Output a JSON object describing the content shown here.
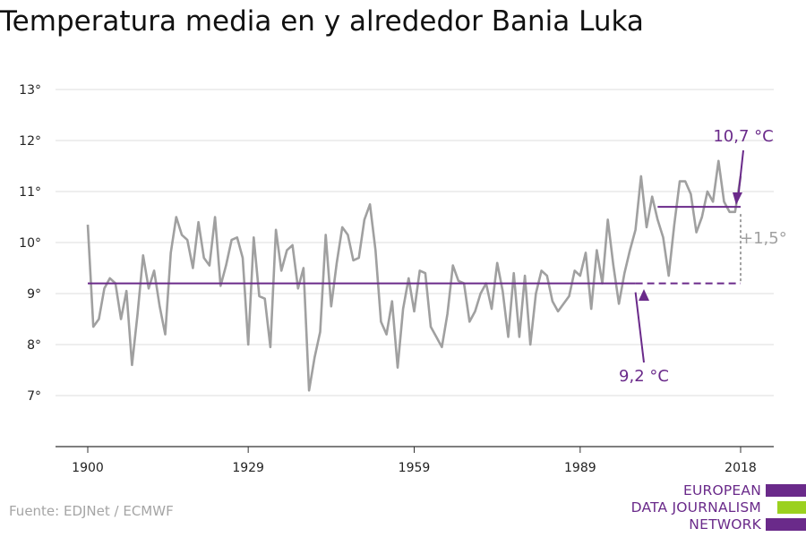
{
  "title": "Temperatura media en y alrededor Bania Luka",
  "source": "Fuente: EDJNet / ECMWF",
  "logo": {
    "lines": [
      "EUROPEAN",
      "DATA JOURNALISM",
      "NETWORK"
    ],
    "colors": [
      "#6a2a8a",
      "#9bd11f",
      "#6a2a8a"
    ]
  },
  "colors": {
    "series": "#a0a0a0",
    "accent": "#6a2a8a",
    "grid": "#dddddd",
    "axis": "#333333"
  },
  "chart_data": {
    "type": "line",
    "title": "Temperatura media en y alrededor Bania Luka",
    "x": [
      1900,
      1901,
      1902,
      1903,
      1904,
      1905,
      1906,
      1907,
      1908,
      1909,
      1910,
      1911,
      1912,
      1913,
      1914,
      1915,
      1916,
      1917,
      1918,
      1919,
      1920,
      1921,
      1922,
      1923,
      1924,
      1925,
      1926,
      1927,
      1928,
      1929,
      1930,
      1931,
      1932,
      1933,
      1934,
      1935,
      1936,
      1937,
      1938,
      1939,
      1940,
      1941,
      1942,
      1943,
      1944,
      1945,
      1946,
      1947,
      1948,
      1949,
      1950,
      1951,
      1952,
      1953,
      1954,
      1955,
      1956,
      1957,
      1958,
      1959,
      1960,
      1961,
      1962,
      1963,
      1964,
      1965,
      1966,
      1967,
      1968,
      1969,
      1970,
      1971,
      1972,
      1973,
      1974,
      1975,
      1976,
      1977,
      1978,
      1979,
      1980,
      1981,
      1982,
      1983,
      1984,
      1985,
      1986,
      1987,
      1988,
      1989,
      1990,
      1991,
      1992,
      1993,
      1994,
      1995,
      1996,
      1997,
      1998,
      1999,
      2000,
      2001,
      2002,
      2003,
      2004,
      2005,
      2006,
      2007,
      2008,
      2009,
      2010,
      2011,
      2012,
      2013,
      2014,
      2015,
      2016,
      2017,
      2018
    ],
    "series": [
      {
        "values": [
          10.35,
          8.35,
          8.5,
          9.1,
          9.3,
          9.2,
          8.5,
          9.05,
          7.6,
          8.6,
          9.75,
          9.1,
          9.45,
          8.75,
          8.2,
          9.8,
          10.5,
          10.15,
          10.05,
          9.5,
          10.4,
          9.7,
          9.55,
          10.5,
          9.15,
          9.55,
          10.05,
          10.1,
          9.7,
          8.0,
          10.1,
          8.95,
          8.9,
          7.95,
          10.25,
          9.45,
          9.85,
          9.95,
          9.1,
          9.5,
          7.1,
          7.75,
          8.25,
          10.15,
          8.75,
          9.6,
          10.3,
          10.15,
          9.65,
          9.7,
          10.45,
          10.75,
          9.85,
          8.45,
          8.2,
          8.85,
          7.55,
          8.7,
          9.3,
          8.65,
          9.45,
          9.4,
          8.35,
          8.15,
          7.95,
          8.6,
          9.55,
          9.25,
          9.2,
          8.45,
          8.65,
          9.0,
          9.2,
          8.7,
          9.6,
          9.05,
          8.15,
          9.4,
          8.15,
          9.35,
          8.0,
          9.0,
          9.45,
          9.35,
          8.85,
          8.65,
          8.8,
          8.95,
          9.45,
          9.35,
          9.8,
          8.7,
          9.85,
          9.2,
          10.45,
          9.55,
          8.8,
          9.4,
          9.85,
          10.25,
          11.3,
          10.3,
          10.9,
          10.45,
          10.1,
          9.35,
          10.35,
          11.2,
          11.2,
          10.95,
          10.2,
          10.5,
          11.0,
          10.8,
          11.6,
          10.8,
          10.6,
          10.6,
          11.3
        ]
      }
    ],
    "xticks": [
      1900,
      1929,
      1959,
      1989,
      2018
    ],
    "xtick_labels": [
      "1900",
      "1929",
      "1959",
      "1989",
      "2018"
    ],
    "yticks": [
      7,
      8,
      9,
      10,
      11,
      12,
      13
    ],
    "ytick_labels": [
      "7°",
      "8°",
      "9°",
      "10°",
      "11°",
      "12°",
      "13°"
    ],
    "xlim": [
      1900,
      2018
    ],
    "ylim": [
      6,
      13
    ],
    "grid": true,
    "reference_lines": [
      {
        "value": 9.2,
        "from": 1900,
        "to": 2018,
        "solid_until": 1999
      },
      {
        "value": 10.7,
        "from": 2003,
        "to": 2018
      }
    ],
    "annotations": [
      {
        "text": "10,7 °C",
        "x": 2018,
        "y": 10.7
      },
      {
        "text": "9,2 °C",
        "x": 1999,
        "y": 9.2
      },
      {
        "text": "+1,5°",
        "x": 2018,
        "y": 9.95
      }
    ]
  }
}
